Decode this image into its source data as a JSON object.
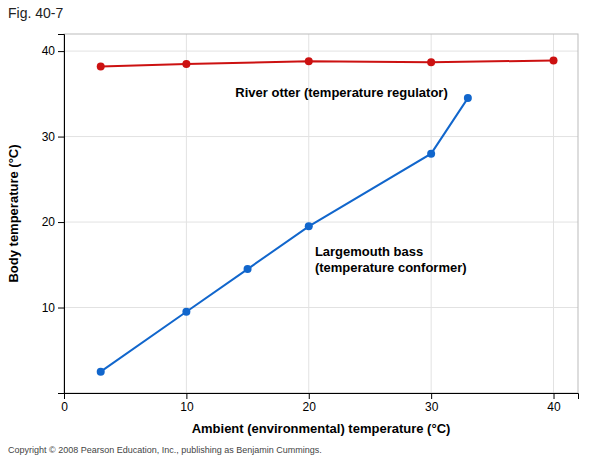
{
  "chart_data": {
    "type": "line",
    "title": "Fig. 40-7",
    "xlabel": "Ambient (environmental) temperature (°C)",
    "ylabel": "Body temperature (°C)",
    "series": [
      {
        "color": "#cc1111",
        "marker": "circle",
        "x": [
          3,
          10,
          20,
          30,
          40
        ],
        "values": [
          38.2,
          38.5,
          38.8,
          38.7,
          38.9
        ]
      },
      {
        "color": "#1166cc",
        "marker": "circle",
        "x": [
          3,
          10,
          15,
          20,
          30,
          33
        ],
        "values": [
          2.5,
          9.5,
          14.5,
          19.5,
          28.0,
          34.5
        ]
      }
    ],
    "annotations": [
      {
        "text": "River otter (temperature regulator)",
        "x": 14,
        "y": 36.2
      },
      {
        "text": "Largemouth bass\n(temperature conformer)",
        "x": 20.5,
        "y": 17.5
      },
      {
        "text": "Copyright © 2008 Pearson Education, Inc., publishing as Benjamin Cummings."
      }
    ],
    "xlim": [
      0,
      42
    ],
    "ylim": [
      0,
      42
    ],
    "xticks": [
      0,
      10,
      20,
      30,
      40
    ],
    "yticks": [
      10,
      20,
      30,
      40
    ],
    "grid": true
  }
}
